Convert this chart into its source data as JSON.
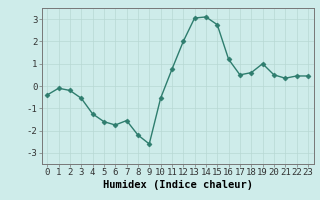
{
  "x": [
    0,
    1,
    2,
    3,
    4,
    5,
    6,
    7,
    8,
    9,
    10,
    11,
    12,
    13,
    14,
    15,
    16,
    17,
    18,
    19,
    20,
    21,
    22,
    23
  ],
  "y": [
    -0.4,
    -0.1,
    -0.2,
    -0.55,
    -1.25,
    -1.6,
    -1.75,
    -1.55,
    -2.2,
    -2.6,
    -0.55,
    0.75,
    2.0,
    3.05,
    3.1,
    2.75,
    1.2,
    0.5,
    0.6,
    1.0,
    0.5,
    0.35,
    0.45,
    0.45
  ],
  "line_color": "#2e7d6e",
  "marker": "D",
  "markersize": 2.5,
  "linewidth": 1.0,
  "bg_color": "#ceecea",
  "grid_color_major": "#b8d8d4",
  "xlabel": "Humidex (Indice chaleur)",
  "xlabel_fontsize": 7.5,
  "ylim": [
    -3.5,
    3.5
  ],
  "xlim": [
    -0.5,
    23.5
  ],
  "yticks": [
    -3,
    -2,
    -1,
    0,
    1,
    2,
    3
  ],
  "xtick_labels": [
    "0",
    "1",
    "2",
    "3",
    "4",
    "5",
    "6",
    "7",
    "8",
    "9",
    "10",
    "11",
    "12",
    "13",
    "14",
    "15",
    "16",
    "17",
    "18",
    "19",
    "20",
    "21",
    "22",
    "23"
  ],
  "tick_fontsize": 6.5
}
